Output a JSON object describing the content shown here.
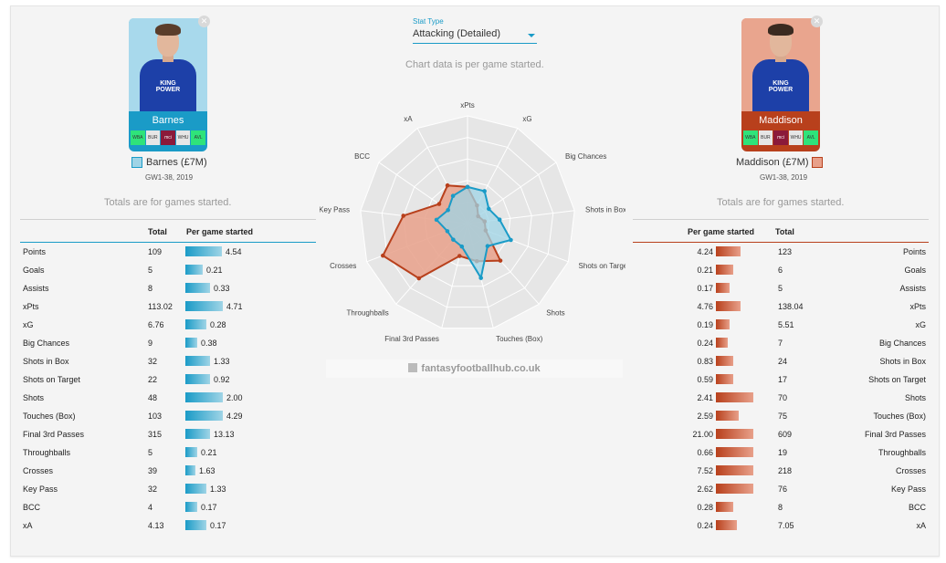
{
  "stat_type": {
    "label": "Stat Type",
    "value": "Attacking (Detailed)"
  },
  "chart_note": "Chart data is per game started.",
  "totals_note": "Totals are for games started.",
  "brand": "fantasyfootballhub.co.uk",
  "colors": {
    "left": "#1a9bc7",
    "right": "#b8401c",
    "left_fill": "#9fd4e6",
    "right_fill": "#e8a08a"
  },
  "left_player": {
    "name": "Barnes",
    "label": "Barnes (£7M)",
    "gw": "GW1-38, 2019",
    "kit_text": "KING\nPOWER",
    "fixtures": [
      {
        "code": "WBA",
        "color": "#2fe37a"
      },
      {
        "code": "BUR",
        "color": "#e6e6e6"
      },
      {
        "code": "mci",
        "color": "#8b1a3a"
      },
      {
        "code": "WHU",
        "color": "#e6e6e6"
      },
      {
        "code": "AVL",
        "color": "#2fe37a"
      }
    ]
  },
  "right_player": {
    "name": "Maddison",
    "label": "Maddison (£7M)",
    "gw": "GW1-38, 2019",
    "kit_text": "KING\nPOWER",
    "fixtures": [
      {
        "code": "WBA",
        "color": "#2fe37a"
      },
      {
        "code": "BUR",
        "color": "#e6e6e6"
      },
      {
        "code": "mci",
        "color": "#8b1a3a"
      },
      {
        "code": "WHU",
        "color": "#e6e6e6"
      },
      {
        "code": "AVL",
        "color": "#2fe37a"
      }
    ]
  },
  "left_table": {
    "col_total": "Total",
    "col_per": "Per game started",
    "rows": [
      {
        "label": "Points",
        "total": "109",
        "per": "4.54",
        "bar": 0.95
      },
      {
        "label": "Goals",
        "total": "5",
        "per": "0.21",
        "bar": 0.45
      },
      {
        "label": "Assists",
        "total": "8",
        "per": "0.33",
        "bar": 0.65
      },
      {
        "label": "xPts",
        "total": "113.02",
        "per": "4.71",
        "bar": 0.98
      },
      {
        "label": "xG",
        "total": "6.76",
        "per": "0.28",
        "bar": 0.55
      },
      {
        "label": "Big Chances",
        "total": "9",
        "per": "0.38",
        "bar": 0.3
      },
      {
        "label": "Shots in Box",
        "total": "32",
        "per": "1.33",
        "bar": 0.65
      },
      {
        "label": "Shots on Target",
        "total": "22",
        "per": "0.92",
        "bar": 0.65
      },
      {
        "label": "Shots",
        "total": "48",
        "per": "2.00",
        "bar": 0.98
      },
      {
        "label": "Touches (Box)",
        "total": "103",
        "per": "4.29",
        "bar": 0.98
      },
      {
        "label": "Final 3rd Passes",
        "total": "315",
        "per": "13.13",
        "bar": 0.65
      },
      {
        "label": "Throughballs",
        "total": "5",
        "per": "0.21",
        "bar": 0.3
      },
      {
        "label": "Crosses",
        "total": "39",
        "per": "1.63",
        "bar": 0.25
      },
      {
        "label": "Key Pass",
        "total": "32",
        "per": "1.33",
        "bar": 0.55
      },
      {
        "label": "BCC",
        "total": "4",
        "per": "0.17",
        "bar": 0.3
      },
      {
        "label": "xA",
        "total": "4.13",
        "per": "0.17",
        "bar": 0.55
      }
    ]
  },
  "right_table": {
    "col_total": "Total",
    "col_per": "Per game started",
    "rows": [
      {
        "label": "Points",
        "total": "123",
        "per": "4.24",
        "bar": 0.65
      },
      {
        "label": "Goals",
        "total": "6",
        "per": "0.21",
        "bar": 0.45
      },
      {
        "label": "Assists",
        "total": "5",
        "per": "0.17",
        "bar": 0.35
      },
      {
        "label": "xPts",
        "total": "138.04",
        "per": "4.76",
        "bar": 0.65
      },
      {
        "label": "xG",
        "total": "5.51",
        "per": "0.19",
        "bar": 0.35
      },
      {
        "label": "Big Chances",
        "total": "7",
        "per": "0.24",
        "bar": 0.3
      },
      {
        "label": "Shots in Box",
        "total": "24",
        "per": "0.83",
        "bar": 0.45
      },
      {
        "label": "Shots on Target",
        "total": "17",
        "per": "0.59",
        "bar": 0.45
      },
      {
        "label": "Shots",
        "total": "70",
        "per": "2.41",
        "bar": 0.98
      },
      {
        "label": "Touches (Box)",
        "total": "75",
        "per": "2.59",
        "bar": 0.6
      },
      {
        "label": "Final 3rd Passes",
        "total": "609",
        "per": "21.00",
        "bar": 0.98
      },
      {
        "label": "Throughballs",
        "total": "19",
        "per": "0.66",
        "bar": 0.98
      },
      {
        "label": "Crosses",
        "total": "218",
        "per": "7.52",
        "bar": 0.98
      },
      {
        "label": "Key Pass",
        "total": "76",
        "per": "2.62",
        "bar": 0.98
      },
      {
        "label": "BCC",
        "total": "8",
        "per": "0.28",
        "bar": 0.45
      },
      {
        "label": "xA",
        "total": "7.05",
        "per": "0.24",
        "bar": 0.55
      }
    ]
  },
  "chart_data": {
    "type": "radar",
    "axes": [
      "xPts",
      "xG",
      "Big Chances",
      "Shots in Box",
      "Shots on Target",
      "Shots",
      "Touches (Box)",
      "Final 3rd Passes",
      "Throughballs",
      "Crosses",
      "Key Pass",
      "BCC",
      "xA"
    ],
    "range": [
      0,
      1
    ],
    "grid_levels": 5,
    "series": [
      {
        "name": "Barnes",
        "color": "#1a9bc7",
        "values": [
          0.34,
          0.34,
          0.24,
          0.3,
          0.43,
          0.28,
          0.52,
          0.22,
          0.2,
          0.2,
          0.29,
          0.22,
          0.29
        ]
      },
      {
        "name": "Maddison",
        "color": "#b8401c",
        "values": [
          0.34,
          0.19,
          0.12,
          0.16,
          0.18,
          0.46,
          0.36,
          0.31,
          0.68,
          0.84,
          0.6,
          0.32,
          0.4
        ]
      }
    ]
  }
}
